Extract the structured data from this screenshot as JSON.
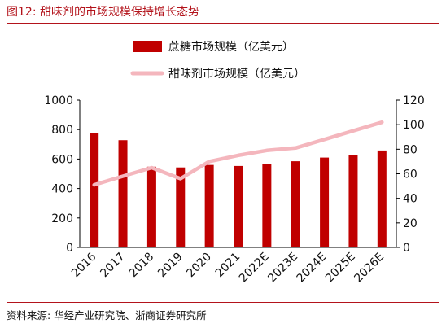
{
  "figure": {
    "title": "图12:  甜味剂的市场规模保持增长态势",
    "source": "资料来源:  华经产业研究院、浙商证券研究所"
  },
  "colors": {
    "bar": "#c00000",
    "line": "#f4b6bd",
    "title": "#b3131b"
  },
  "chart_data": {
    "type": "bar",
    "categories": [
      "2016",
      "2017",
      "2018",
      "2019",
      "2020",
      "2021",
      "2022E",
      "2023E",
      "2024E",
      "2025E",
      "2026E"
    ],
    "series": [
      {
        "name": "蔗糖市场规模（亿美元）",
        "type": "bar",
        "axis": "left",
        "values": [
          778,
          728,
          548,
          543,
          560,
          553,
          567,
          585,
          610,
          628,
          658
        ]
      },
      {
        "name": "甜味剂市场规模（亿美元）",
        "type": "line",
        "axis": "right",
        "values": [
          51,
          58,
          65,
          56,
          70,
          75,
          79,
          81,
          88,
          95,
          102
        ]
      }
    ],
    "ylim": [
      0,
      1000
    ],
    "yticks": [
      "0",
      "200",
      "400",
      "600",
      "800",
      "1000"
    ],
    "y2lim": [
      0,
      120
    ],
    "y2ticks": [
      "0",
      "20",
      "40",
      "60",
      "80",
      "100",
      "120"
    ],
    "legend_position": "top",
    "grid": false
  }
}
